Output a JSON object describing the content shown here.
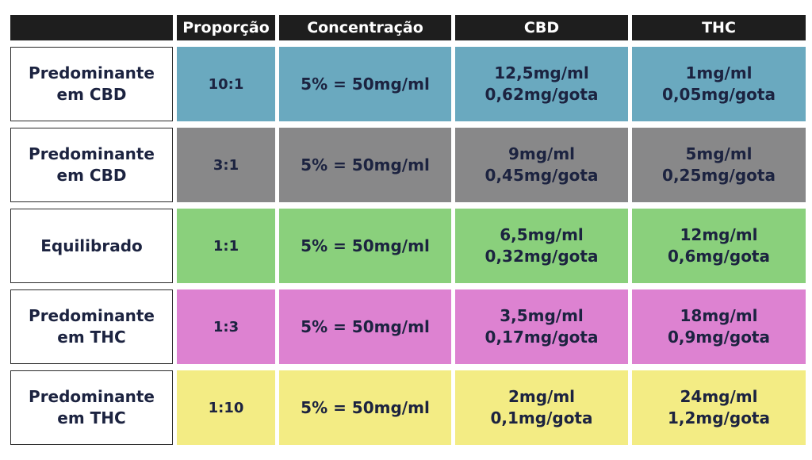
{
  "headers": [
    "",
    "Proporção",
    "Concentração",
    "CBD",
    "THC"
  ],
  "rows": [
    {
      "label_line1": "Predominante",
      "label_line2": "em CBD",
      "ratio": "10:1",
      "concentration": "5% = 50mg/ml",
      "cbd_ml": "12,5mg/ml",
      "cbd_gota": "0,62mg/gota",
      "thc_ml": "1mg/ml",
      "thc_gota": "0,05mg/gota",
      "color": "#6aa9bf"
    },
    {
      "label_line1": "Predominante",
      "label_line2": "em CBD",
      "ratio": "3:1",
      "concentration": "5% = 50mg/ml",
      "cbd_ml": "9mg/ml",
      "cbd_gota": "0,45mg/gota",
      "thc_ml": "5mg/ml",
      "thc_gota": "0,25mg/gota",
      "color": "#888889"
    },
    {
      "label_line1": "Equilibrado",
      "label_line2": "",
      "ratio": "1:1",
      "concentration": "5% = 50mg/ml",
      "cbd_ml": "6,5mg/ml",
      "cbd_gota": "0,32mg/gota",
      "thc_ml": "12mg/ml",
      "thc_gota": "0,6mg/gota",
      "color": "#8ad07c"
    },
    {
      "label_line1": "Predominante",
      "label_line2": "em THC",
      "ratio": "1:3",
      "concentration": "5% = 50mg/ml",
      "cbd_ml": "3,5mg/ml",
      "cbd_gota": "0,17mg/gota",
      "thc_ml": "18mg/ml",
      "thc_gota": "0,9mg/gota",
      "color": "#dd82d1"
    },
    {
      "label_line1": "Predominante",
      "label_line2": "em THC",
      "ratio": "1:10",
      "concentration": "5% = 50mg/ml",
      "cbd_ml": "2mg/ml",
      "cbd_gota": "0,1mg/gota",
      "thc_ml": "24mg/ml",
      "thc_gota": "1,2mg/gota",
      "color": "#f3ec84"
    }
  ]
}
